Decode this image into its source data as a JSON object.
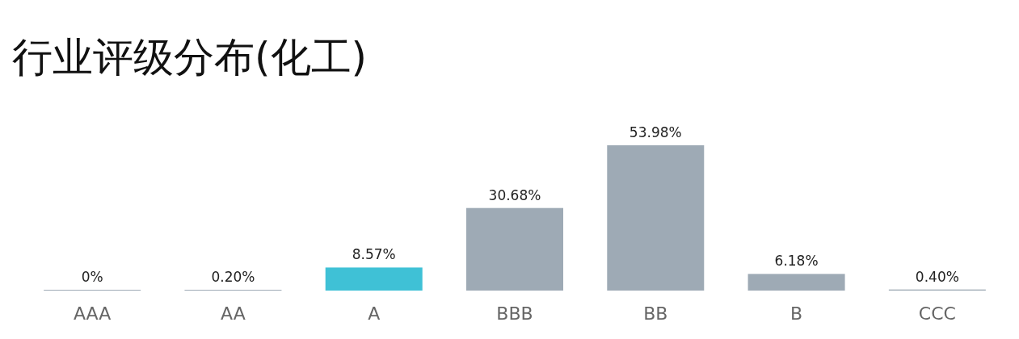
{
  "chart_data": {
    "type": "bar",
    "title": "行业评级分布(化工)",
    "categories": [
      "AAA",
      "AA",
      "A",
      "BBB",
      "BB",
      "B",
      "CCC"
    ],
    "values": [
      0,
      0.2,
      8.57,
      30.68,
      53.98,
      6.18,
      0.4
    ],
    "value_labels": [
      "0%",
      "0.20%",
      "8.57%",
      "30.68%",
      "53.98%",
      "6.18%",
      "0.40%"
    ],
    "colors": [
      "#9eaab5",
      "#9eaab5",
      "#3fc1d6",
      "#9eaab5",
      "#9eaab5",
      "#9eaab5",
      "#9eaab5"
    ]
  }
}
